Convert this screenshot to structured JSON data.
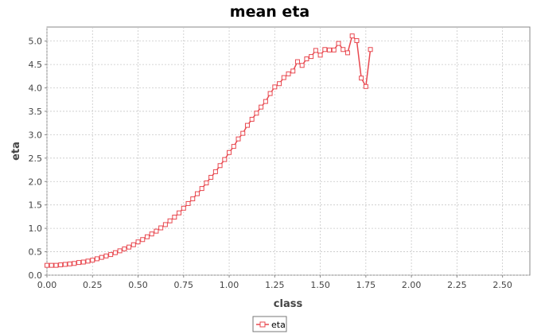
{
  "chart_data": {
    "type": "line",
    "title": "mean eta",
    "xlabel": "class",
    "ylabel": "eta",
    "xlim": [
      0,
      2.65
    ],
    "ylim": [
      0,
      5.3
    ],
    "xticks": [
      "0.00",
      "0.25",
      "0.50",
      "0.75",
      "1.00",
      "1.25",
      "1.50",
      "1.75",
      "2.00",
      "2.25",
      "2.50"
    ],
    "yticks": [
      "0.0",
      "0.5",
      "1.0",
      "1.5",
      "2.0",
      "2.5",
      "3.0",
      "3.5",
      "4.0",
      "4.5",
      "5.0"
    ],
    "grid": true,
    "legend_position": "bottom",
    "series": [
      {
        "name": "eta",
        "color": "#e8484f",
        "marker": "hollow-square",
        "points": [
          [
            0.0,
            0.21
          ],
          [
            0.025,
            0.21
          ],
          [
            0.05,
            0.21
          ],
          [
            0.075,
            0.22
          ],
          [
            0.1,
            0.23
          ],
          [
            0.125,
            0.24
          ],
          [
            0.15,
            0.25
          ],
          [
            0.175,
            0.27
          ],
          [
            0.2,
            0.28
          ],
          [
            0.225,
            0.3
          ],
          [
            0.25,
            0.32
          ],
          [
            0.275,
            0.35
          ],
          [
            0.3,
            0.38
          ],
          [
            0.325,
            0.41
          ],
          [
            0.35,
            0.44
          ],
          [
            0.375,
            0.48
          ],
          [
            0.4,
            0.52
          ],
          [
            0.425,
            0.56
          ],
          [
            0.45,
            0.6
          ],
          [
            0.475,
            0.65
          ],
          [
            0.5,
            0.71
          ],
          [
            0.525,
            0.76
          ],
          [
            0.55,
            0.82
          ],
          [
            0.575,
            0.88
          ],
          [
            0.6,
            0.94
          ],
          [
            0.625,
            1.01
          ],
          [
            0.65,
            1.08
          ],
          [
            0.675,
            1.16
          ],
          [
            0.7,
            1.24
          ],
          [
            0.725,
            1.33
          ],
          [
            0.75,
            1.43
          ],
          [
            0.775,
            1.53
          ],
          [
            0.8,
            1.63
          ],
          [
            0.825,
            1.74
          ],
          [
            0.85,
            1.85
          ],
          [
            0.875,
            1.97
          ],
          [
            0.9,
            2.09
          ],
          [
            0.925,
            2.21
          ],
          [
            0.95,
            2.34
          ],
          [
            0.975,
            2.47
          ],
          [
            1.0,
            2.62
          ],
          [
            1.025,
            2.75
          ],
          [
            1.05,
            2.91
          ],
          [
            1.075,
            3.03
          ],
          [
            1.1,
            3.2
          ],
          [
            1.125,
            3.33
          ],
          [
            1.15,
            3.46
          ],
          [
            1.175,
            3.59
          ],
          [
            1.2,
            3.71
          ],
          [
            1.225,
            3.88
          ],
          [
            1.25,
            4.02
          ],
          [
            1.275,
            4.09
          ],
          [
            1.3,
            4.22
          ],
          [
            1.325,
            4.3
          ],
          [
            1.35,
            4.36
          ],
          [
            1.375,
            4.56
          ],
          [
            1.4,
            4.48
          ],
          [
            1.425,
            4.62
          ],
          [
            1.45,
            4.67
          ],
          [
            1.475,
            4.8
          ],
          [
            1.5,
            4.7
          ],
          [
            1.525,
            4.82
          ],
          [
            1.55,
            4.81
          ],
          [
            1.575,
            4.81
          ],
          [
            1.6,
            4.95
          ],
          [
            1.625,
            4.82
          ],
          [
            1.65,
            4.75
          ],
          [
            1.675,
            5.11
          ],
          [
            1.7,
            5.01
          ],
          [
            1.725,
            4.21
          ],
          [
            1.75,
            4.03
          ],
          [
            1.775,
            4.82
          ]
        ]
      }
    ]
  }
}
